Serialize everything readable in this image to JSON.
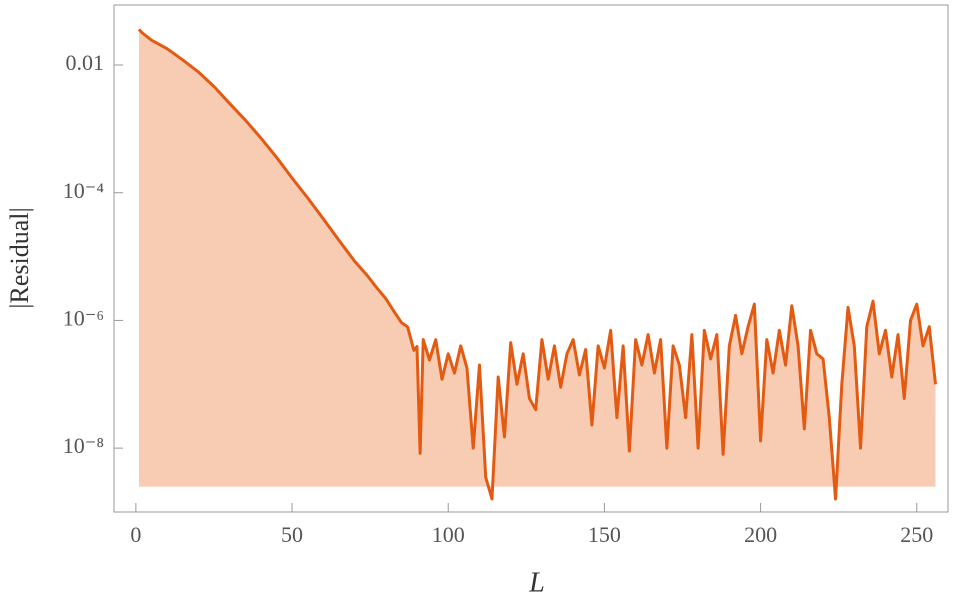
{
  "chart_data": {
    "type": "area-line",
    "x_label": "L",
    "y_label": "|Residual|",
    "x": [
      1,
      2,
      5,
      10,
      15,
      20,
      25,
      30,
      35,
      40,
      45,
      50,
      55,
      60,
      65,
      70,
      74,
      77,
      80,
      83,
      85,
      87,
      88,
      89,
      90,
      91,
      92,
      94,
      96,
      98,
      100,
      102,
      104,
      106,
      108,
      110,
      112,
      114,
      116,
      118,
      120,
      122,
      124,
      126,
      128,
      130,
      132,
      134,
      136,
      138,
      140,
      142,
      144,
      146,
      148,
      150,
      152,
      154,
      156,
      158,
      160,
      162,
      164,
      166,
      168,
      170,
      172,
      174,
      176,
      178,
      180,
      182,
      184,
      186,
      188,
      190,
      192,
      194,
      196,
      198,
      200,
      202,
      204,
      206,
      208,
      210,
      212,
      214,
      216,
      218,
      220,
      222,
      224,
      226,
      228,
      230,
      232,
      234,
      236,
      238,
      240,
      242,
      244,
      246,
      248,
      250,
      252,
      254,
      256
    ],
    "values": [
      0.036,
      0.032,
      0.0245,
      0.018,
      0.012,
      0.0078,
      0.0046,
      0.0025,
      0.00138,
      0.00072,
      0.00036,
      0.00017,
      8.3e-05,
      3.9e-05,
      1.8e-05,
      8.5e-06,
      5.1e-06,
      3.3e-06,
      2.2e-06,
      1.3e-06,
      9.3e-07,
      7.9e-07,
      5.2e-07,
      3.4e-07,
      3.9e-07,
      8.3e-09,
      5e-07,
      2.4e-07,
      5e-07,
      1.2e-07,
      3e-07,
      1.5e-07,
      4e-07,
      1.8e-07,
      1e-08,
      2e-07,
      3.5e-09,
      1.6e-09,
      1.3e-07,
      1.5e-08,
      4.5e-07,
      1e-07,
      3e-07,
      6e-08,
      4e-08,
      5e-07,
      1.2e-07,
      4e-07,
      9e-08,
      3e-07,
      5e-07,
      1.4e-07,
      3.5e-07,
      2.3e-08,
      4e-07,
      1.8e-07,
      7e-07,
      3e-08,
      4e-07,
      9e-09,
      5e-07,
      2e-07,
      6e-07,
      1.5e-07,
      5e-07,
      1e-08,
      4e-07,
      2e-07,
      3e-08,
      6e-07,
      1e-08,
      7e-07,
      2.5e-07,
      6e-07,
      8e-09,
      4e-07,
      1.2e-06,
      3e-07,
      8e-07,
      1.8e-06,
      1.3e-08,
      5e-07,
      1.5e-07,
      7e-07,
      2e-07,
      1.7e-06,
      4e-07,
      2e-08,
      7e-07,
      3e-07,
      2.5e-07,
      3e-08,
      1.6e-09,
      1e-07,
      1.6e-06,
      4e-07,
      1e-08,
      8e-07,
      2e-06,
      3e-07,
      7e-07,
      1.3e-07,
      6e-07,
      6e-08,
      1e-06,
      1.8e-06,
      4e-07,
      8e-07,
      1e-07
    ],
    "color": "#e35a12",
    "fill_color": "#f8ccb2",
    "filling_to": 2.5e-09,
    "xlim": [
      -7,
      260
    ],
    "xticks": [
      0,
      50,
      100,
      150,
      200,
      250
    ],
    "ylim": [
      1e-09,
      0.087
    ],
    "y_scale": "log",
    "yticks": [
      0.01,
      {
        "value": 0.0001,
        "label": "10⁻⁴"
      },
      {
        "value": 1e-06,
        "label": "10⁻⁶"
      },
      {
        "value": 1e-08,
        "label": "10⁻⁸"
      }
    ]
  }
}
